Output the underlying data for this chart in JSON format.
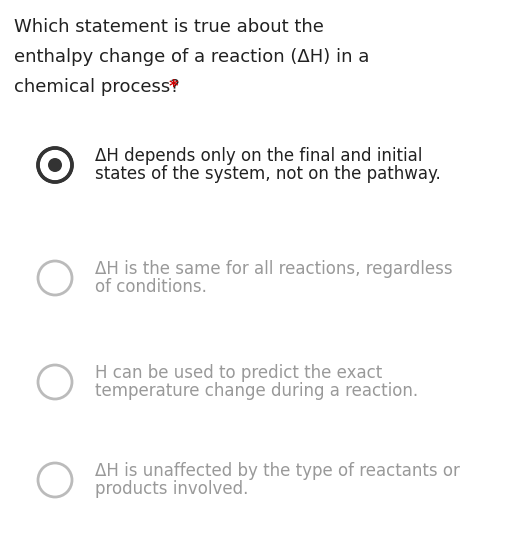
{
  "background_color": "#ffffff",
  "question_text_lines": [
    "Which statement is true about the",
    "enthalpy change of a reaction (ΔH) in a",
    "chemical process? *"
  ],
  "question_font_size": 13.0,
  "asterisk_color": "#cc0000",
  "options": [
    {
      "lines": [
        "ΔH depends only on the final and initial",
        "states of the system, not on the pathway."
      ],
      "selected": true
    },
    {
      "lines": [
        "ΔH is the same for all reactions, regardless",
        "of conditions."
      ],
      "selected": false
    },
    {
      "lines": [
        "H can be used to predict the exact",
        "temperature change during a reaction."
      ],
      "selected": false
    },
    {
      "lines": [
        "ΔH is unaffected by the type of reactants or",
        "products involved."
      ],
      "selected": false
    }
  ],
  "option_font_size": 12.0,
  "selected_ring_color": "#333333",
  "selected_dot_color": "#333333",
  "unselected_ring_color": "#bbbbbb",
  "text_color_selected": "#212121",
  "text_color_unselected": "#999999"
}
